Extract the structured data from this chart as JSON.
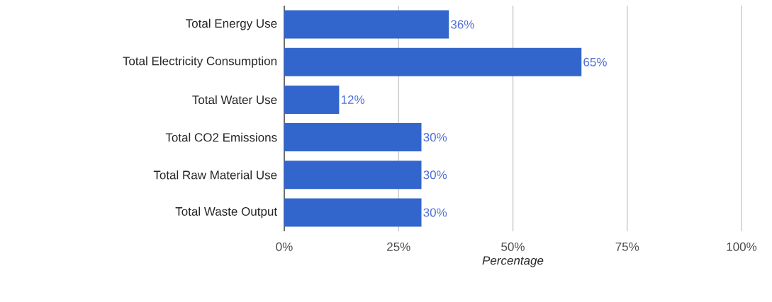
{
  "chart_data": {
    "type": "bar",
    "orientation": "horizontal",
    "categories": [
      "Total Energy Use",
      "Total Electricity Consumption",
      "Total Water Use",
      "Total CO2 Emissions",
      "Total Raw Material Use",
      "Total Waste Output"
    ],
    "values": [
      36,
      65,
      12,
      30,
      30,
      30
    ],
    "value_labels": [
      "36%",
      "65%",
      "12%",
      "30%",
      "30%",
      "30%"
    ],
    "color": "#3366cc",
    "xlabel": "Percentage",
    "xlim": [
      0,
      100
    ],
    "xticks": [
      {
        "value": 0,
        "label": "0%"
      },
      {
        "value": 25,
        "label": "25%"
      },
      {
        "value": 50,
        "label": "50%"
      },
      {
        "value": 75,
        "label": "75%"
      },
      {
        "value": 100,
        "label": "100%"
      }
    ],
    "grid": "x"
  }
}
